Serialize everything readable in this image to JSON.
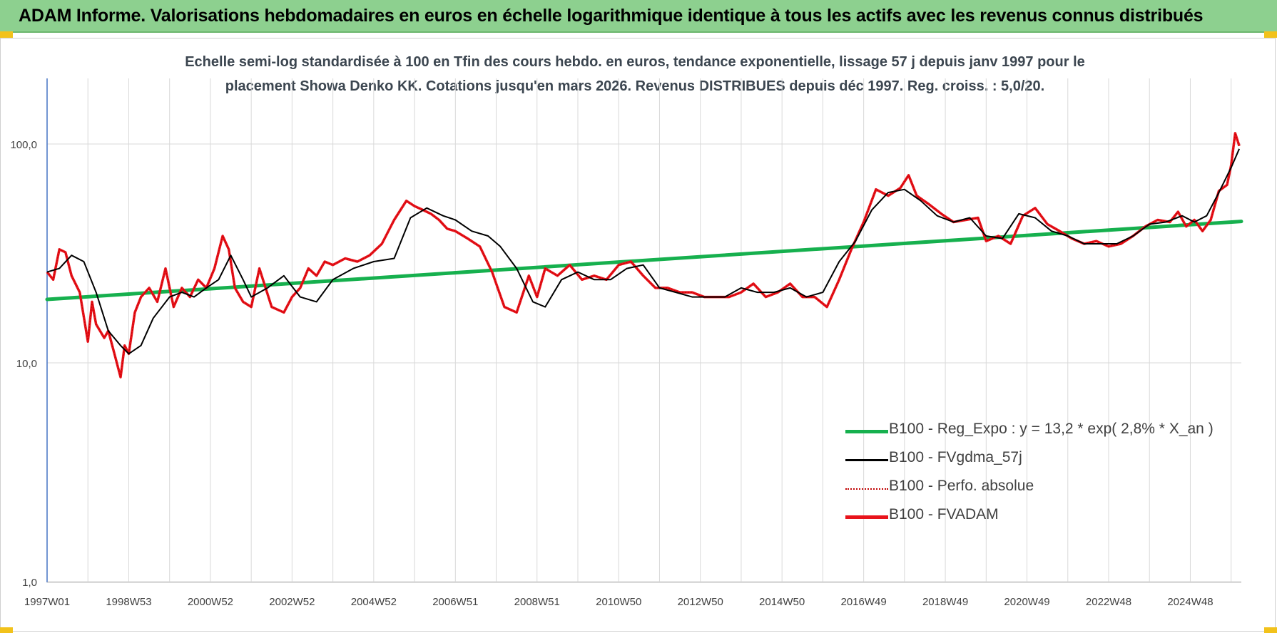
{
  "header": {
    "title": "ADAM Informe. Valorisations hebdomadaires en euros en échelle logarithmique identique à tous les actifs avec les revenus connus distribués"
  },
  "chart_subtitle": [
    "Echelle semi-log standardisée à 100 en Tfin des cours hebdo. en euros, tendance exponentielle, lissage 57 j depuis janv 1997 pour le",
    "placement Showa Denko KK. Cotations jusqu'en mars 2026. Revenus DISTRIBUES depuis déc 1997. Reg. croiss. : 5,0/20."
  ],
  "colors": {
    "title_bar": "#8dd08f",
    "corner_accent": "#f2c21b",
    "regression": "#16b04e",
    "smoothed": "#000000",
    "perf": "#c00000",
    "fvadam": "#e8131b",
    "grid": "#d9d9d9",
    "axis": "#4472c4"
  },
  "chart_data": {
    "type": "line",
    "yscale": "log",
    "ylim": [
      1,
      180
    ],
    "y_ticks": [
      "1,0",
      "10,0",
      "100,0"
    ],
    "y_tick_values": [
      1,
      10,
      100
    ],
    "x_tick_labels": [
      "1997W01",
      "1998W53",
      "2000W52",
      "2002W52",
      "2004W52",
      "2006W51",
      "2008W51",
      "2010W50",
      "2012W50",
      "2014W50",
      "2016W49",
      "2018W49",
      "2020W49",
      "2022W48",
      "2024W48"
    ],
    "x_tick_years": [
      1997.0,
      1999.0,
      2001.0,
      2003.0,
      2005.0,
      2007.0,
      2009.0,
      2011.0,
      2013.0,
      2015.0,
      2017.0,
      2019.0,
      2021.0,
      2023.0,
      2025.0
    ],
    "xlim": [
      1997.0,
      2026.25
    ],
    "series": [
      {
        "name": "B100 - Reg_Expo : y = 13,2 * exp( 2,8% *  X_an )",
        "kind": "regression",
        "x": [
          1997.0,
          2026.25
        ],
        "values": [
          19.5,
          44.3
        ]
      },
      {
        "name": "B100 - FVgdma_57j",
        "kind": "smoothed",
        "x": [
          1997.0,
          1997.3,
          1997.6,
          1997.9,
          1998.2,
          1998.5,
          1998.8,
          1999.0,
          1999.3,
          1999.6,
          2000.0,
          2000.3,
          2000.6,
          2000.9,
          2001.2,
          2001.5,
          2001.8,
          2002.0,
          2002.4,
          2002.8,
          2003.2,
          2003.6,
          2004.0,
          2004.5,
          2005.0,
          2005.5,
          2005.9,
          2006.3,
          2006.7,
          2007.0,
          2007.4,
          2007.8,
          2008.1,
          2008.5,
          2008.9,
          2009.2,
          2009.6,
          2010.0,
          2010.4,
          2010.8,
          2011.2,
          2011.6,
          2012.0,
          2012.4,
          2012.8,
          2013.2,
          2013.6,
          2014.0,
          2014.4,
          2014.8,
          2015.2,
          2015.6,
          2016.0,
          2016.4,
          2016.8,
          2017.2,
          2017.6,
          2018.0,
          2018.4,
          2018.8,
          2019.2,
          2019.6,
          2020.0,
          2020.4,
          2020.8,
          2021.2,
          2021.6,
          2022.0,
          2022.4,
          2022.8,
          2023.2,
          2023.6,
          2024.0,
          2024.4,
          2024.8,
          2025.1,
          2025.4,
          2025.7,
          2026.0,
          2026.2
        ],
        "values": [
          26,
          27,
          31,
          29,
          21,
          14,
          12,
          11,
          12,
          16,
          20,
          21,
          20,
          22,
          24,
          31,
          24,
          20,
          22,
          25,
          20,
          19,
          24,
          27,
          29,
          30,
          46,
          51,
          47,
          45,
          40,
          38,
          34,
          27,
          19,
          18,
          24,
          26,
          24,
          24,
          27,
          28,
          22,
          21,
          20,
          20,
          20,
          22,
          21,
          21,
          22,
          20,
          21,
          29,
          36,
          50,
          60,
          62,
          55,
          47,
          44,
          46,
          38,
          37,
          48,
          46,
          40,
          38,
          35,
          35,
          35,
          38,
          43,
          44,
          47,
          44,
          47,
          60,
          78,
          95
        ]
      },
      {
        "name": "B100 - Perfo. absolue",
        "kind": "perf"
      },
      {
        "name": "B100 - FVADAM",
        "kind": "fvadam",
        "x": [
          1997.0,
          1997.15,
          1997.3,
          1997.45,
          1997.6,
          1997.8,
          1998.0,
          1998.1,
          1998.2,
          1998.4,
          1998.5,
          1998.65,
          1998.8,
          1998.9,
          1999.0,
          1999.15,
          1999.3,
          1999.5,
          1999.7,
          1999.9,
          2000.1,
          2000.3,
          2000.5,
          2000.7,
          2000.9,
          2001.1,
          2001.3,
          2001.45,
          2001.6,
          2001.8,
          2002.0,
          2002.2,
          2002.5,
          2002.8,
          2003.0,
          2003.2,
          2003.4,
          2003.6,
          2003.8,
          2004.0,
          2004.3,
          2004.6,
          2004.9,
          2005.2,
          2005.5,
          2005.8,
          2006.0,
          2006.2,
          2006.4,
          2006.6,
          2006.8,
          2007.0,
          2007.3,
          2007.6,
          2007.9,
          2008.2,
          2008.5,
          2008.8,
          2009.0,
          2009.2,
          2009.5,
          2009.8,
          2010.1,
          2010.4,
          2010.7,
          2011.0,
          2011.3,
          2011.6,
          2011.9,
          2012.2,
          2012.5,
          2012.8,
          2013.1,
          2013.4,
          2013.7,
          2014.0,
          2014.3,
          2014.6,
          2014.9,
          2015.2,
          2015.5,
          2015.8,
          2016.1,
          2016.4,
          2016.7,
          2017.0,
          2017.3,
          2017.6,
          2017.9,
          2018.1,
          2018.3,
          2018.6,
          2018.9,
          2019.2,
          2019.5,
          2019.8,
          2020.0,
          2020.3,
          2020.6,
          2020.9,
          2021.2,
          2021.5,
          2021.8,
          2022.1,
          2022.4,
          2022.7,
          2023.0,
          2023.3,
          2023.6,
          2023.9,
          2024.2,
          2024.5,
          2024.7,
          2024.9,
          2025.1,
          2025.3,
          2025.5,
          2025.7,
          2025.9,
          2026.0,
          2026.1,
          2026.2
        ],
        "values": [
          26,
          24,
          33,
          32,
          25,
          21,
          12.5,
          19,
          15,
          13,
          14,
          11,
          8.6,
          12,
          11,
          17,
          20,
          22,
          19,
          27,
          18,
          22,
          20,
          24,
          22,
          27,
          38,
          33,
          22,
          19,
          18,
          27,
          18,
          17,
          20,
          22,
          27,
          25,
          29,
          28,
          30,
          29,
          31,
          35,
          45,
          55,
          52,
          50,
          48,
          45,
          41,
          40,
          37,
          34,
          26,
          18,
          17,
          25,
          20,
          27,
          25,
          28,
          24,
          25,
          24,
          28,
          29,
          25,
          22,
          22,
          21,
          21,
          20,
          20,
          20,
          21,
          23,
          20,
          21,
          23,
          20,
          20,
          18,
          24,
          33,
          44,
          62,
          58,
          63,
          72,
          58,
          53,
          48,
          44,
          45,
          46,
          36,
          38,
          35,
          47,
          51,
          43,
          40,
          37,
          35,
          36,
          34,
          35,
          38,
          42,
          45,
          44,
          49,
          42,
          45,
          40,
          45,
          61,
          65,
          80,
          112,
          98
        ]
      }
    ]
  }
}
